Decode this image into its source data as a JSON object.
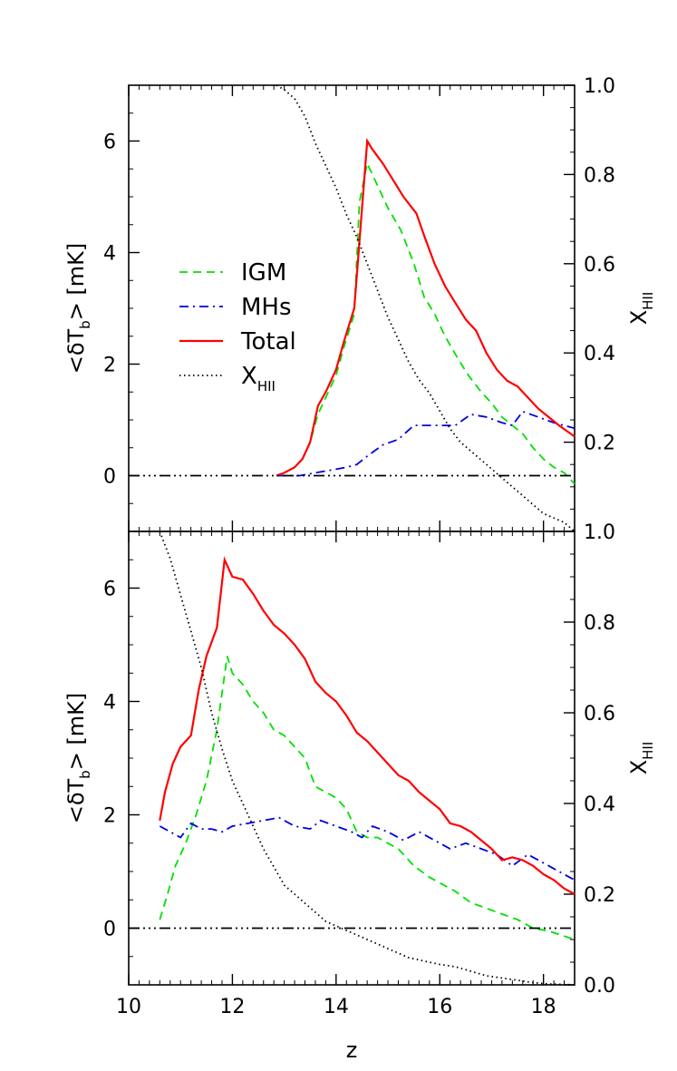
{
  "chart_data": [
    {
      "type": "line",
      "panel": "top",
      "ylabel": "<δT_b> [mK]",
      "ylabel_parts": {
        "open": "<δT",
        "sub": "b",
        "close": "> [mK]"
      },
      "y2label": "X_HII",
      "y2label_parts": {
        "main": "X",
        "sub": "HII"
      },
      "xlim": [
        10,
        18.6
      ],
      "ylim": [
        -1,
        7
      ],
      "y2lim": [
        0.0,
        1.0
      ],
      "yticks": [
        0,
        2,
        4,
        6
      ],
      "y2ticks": [
        0.2,
        0.4,
        0.6,
        0.8,
        1.0
      ],
      "legend": {
        "position": "center-left",
        "entries": [
          {
            "label": "IGM",
            "color": "#00e000",
            "dash": "dashed"
          },
          {
            "label": "MHs",
            "color": "#0000e0",
            "dash": "dashdot"
          },
          {
            "label": "Total",
            "color": "#ff0000",
            "dash": "solid"
          },
          {
            "label": "X",
            "label_sub": "HII",
            "color": "#000000",
            "dash": "dotted"
          }
        ]
      },
      "series": [
        {
          "name": "IGM",
          "color": "#00e000",
          "dash": "dashed",
          "axis": "left",
          "x": [
            12.85,
            13.0,
            13.2,
            13.35,
            13.5,
            13.65,
            13.8,
            14.0,
            14.15,
            14.35,
            14.45,
            14.6,
            14.8,
            15.0,
            15.25,
            15.5,
            15.7,
            15.9,
            16.1,
            16.35,
            16.55,
            16.8,
            17.0,
            17.2,
            17.4,
            17.6,
            17.8,
            18.0,
            18.2,
            18.4,
            18.6
          ],
          "y": [
            0.0,
            0.05,
            0.15,
            0.3,
            0.6,
            1.1,
            1.4,
            1.8,
            2.3,
            2.9,
            4.9,
            5.6,
            5.2,
            4.8,
            4.4,
            3.8,
            3.2,
            2.9,
            2.5,
            2.1,
            1.8,
            1.5,
            1.3,
            1.05,
            0.9,
            0.75,
            0.5,
            0.3,
            0.15,
            0.05,
            -0.15
          ]
        },
        {
          "name": "MHs",
          "color": "#0000e0",
          "dash": "dashdot",
          "axis": "left",
          "x": [
            12.85,
            13.3,
            13.6,
            13.9,
            14.2,
            14.4,
            14.6,
            14.9,
            15.2,
            15.5,
            15.8,
            16.0,
            16.3,
            16.6,
            16.9,
            17.2,
            17.4,
            17.6,
            17.9,
            18.2,
            18.6
          ],
          "y": [
            0.0,
            0.0,
            0.05,
            0.1,
            0.15,
            0.2,
            0.35,
            0.55,
            0.65,
            0.9,
            0.9,
            0.9,
            0.9,
            1.1,
            1.05,
            0.95,
            0.9,
            1.15,
            1.05,
            0.95,
            0.85
          ]
        },
        {
          "name": "Total",
          "color": "#ff0000",
          "dash": "solid",
          "axis": "left",
          "x": [
            12.85,
            13.0,
            13.2,
            13.35,
            13.5,
            13.65,
            13.8,
            14.0,
            14.15,
            14.35,
            14.6,
            14.7,
            14.9,
            15.1,
            15.3,
            15.55,
            15.7,
            15.9,
            16.1,
            16.3,
            16.5,
            16.7,
            16.9,
            17.1,
            17.3,
            17.5,
            17.7,
            17.9,
            18.1,
            18.3,
            18.6
          ],
          "y": [
            0.0,
            0.05,
            0.15,
            0.3,
            0.6,
            1.25,
            1.5,
            1.9,
            2.4,
            3.0,
            6.0,
            5.85,
            5.6,
            5.3,
            5.0,
            4.7,
            4.3,
            3.8,
            3.4,
            3.1,
            2.8,
            2.6,
            2.2,
            1.9,
            1.7,
            1.6,
            1.4,
            1.2,
            1.05,
            0.9,
            0.7
          ]
        },
        {
          "name": "X_HII",
          "color": "#000000",
          "dash": "dotted",
          "axis": "right",
          "x": [
            12.85,
            13.0,
            13.2,
            13.4,
            13.6,
            13.8,
            14.0,
            14.2,
            14.4,
            14.6,
            14.8,
            15.0,
            15.2,
            15.4,
            15.6,
            15.8,
            16.0,
            16.2,
            16.4,
            16.6,
            16.8,
            17.0,
            17.2,
            17.4,
            17.6,
            17.8,
            18.0,
            18.2,
            18.4,
            18.6
          ],
          "y": [
            1.0,
            0.99,
            0.97,
            0.93,
            0.87,
            0.82,
            0.77,
            0.71,
            0.66,
            0.6,
            0.54,
            0.48,
            0.43,
            0.38,
            0.34,
            0.31,
            0.27,
            0.23,
            0.2,
            0.18,
            0.16,
            0.14,
            0.12,
            0.1,
            0.08,
            0.06,
            0.04,
            0.03,
            0.02,
            0.0
          ]
        },
        {
          "name": "zero",
          "color": "#000000",
          "dash": "dashdotdotdot",
          "axis": "left",
          "x": [
            10,
            18.6
          ],
          "y": [
            0,
            0
          ]
        }
      ]
    },
    {
      "type": "line",
      "panel": "bottom",
      "ylabel": "<δT_b> [mK]",
      "ylabel_parts": {
        "open": "<δT",
        "sub": "b",
        "close": "> [mK]"
      },
      "y2label": "X_HII",
      "y2label_parts": {
        "main": "X",
        "sub": "HII"
      },
      "xlabel": "z",
      "xlim": [
        10,
        18.6
      ],
      "ylim": [
        -1,
        7
      ],
      "y2lim": [
        0.0,
        1.0
      ],
      "xticks": [
        10,
        12,
        14,
        16,
        18
      ],
      "yticks": [
        0,
        2,
        4,
        6
      ],
      "y2ticks": [
        0.0,
        0.2,
        0.4,
        0.6,
        0.8,
        1.0
      ],
      "series": [
        {
          "name": "IGM",
          "color": "#00e000",
          "dash": "dashed",
          "axis": "left",
          "x": [
            10.6,
            10.75,
            10.9,
            11.1,
            11.3,
            11.5,
            11.7,
            11.9,
            12.0,
            12.2,
            12.4,
            12.6,
            12.8,
            13.0,
            13.2,
            13.4,
            13.6,
            13.8,
            14.0,
            14.2,
            14.4,
            14.6,
            14.8,
            15.0,
            15.2,
            15.5,
            15.8,
            16.0,
            16.3,
            16.6,
            16.9,
            17.2,
            17.5,
            17.8,
            18.1,
            18.6
          ],
          "y": [
            0.15,
            0.6,
            1.1,
            1.5,
            2.0,
            2.6,
            3.5,
            4.8,
            4.5,
            4.3,
            4.0,
            3.8,
            3.5,
            3.4,
            3.2,
            3.0,
            2.5,
            2.4,
            2.3,
            2.1,
            1.7,
            1.6,
            1.6,
            1.5,
            1.4,
            1.1,
            0.9,
            0.8,
            0.65,
            0.45,
            0.35,
            0.25,
            0.15,
            0.0,
            -0.05,
            -0.2
          ]
        },
        {
          "name": "MHs",
          "color": "#0000e0",
          "dash": "dashdot",
          "axis": "left",
          "x": [
            10.6,
            10.8,
            11.0,
            11.2,
            11.4,
            11.6,
            11.8,
            12.0,
            12.3,
            12.6,
            12.9,
            13.2,
            13.5,
            13.7,
            14.0,
            14.3,
            14.5,
            14.7,
            15.0,
            15.3,
            15.6,
            15.9,
            16.2,
            16.5,
            16.8,
            17.1,
            17.4,
            17.7,
            18.0,
            18.3,
            18.6
          ],
          "y": [
            1.8,
            1.7,
            1.6,
            1.85,
            1.75,
            1.75,
            1.7,
            1.8,
            1.85,
            1.9,
            1.95,
            1.8,
            1.75,
            1.9,
            1.8,
            1.7,
            1.6,
            1.8,
            1.7,
            1.55,
            1.7,
            1.55,
            1.4,
            1.5,
            1.4,
            1.3,
            1.1,
            1.3,
            1.15,
            1.0,
            0.85
          ]
        },
        {
          "name": "Total",
          "color": "#ff0000",
          "dash": "solid",
          "axis": "left",
          "x": [
            10.6,
            10.7,
            10.85,
            11.0,
            11.2,
            11.35,
            11.5,
            11.7,
            11.85,
            12.0,
            12.2,
            12.4,
            12.6,
            12.8,
            13.0,
            13.2,
            13.4,
            13.6,
            13.8,
            14.0,
            14.2,
            14.4,
            14.6,
            14.8,
            15.0,
            15.2,
            15.4,
            15.6,
            15.8,
            16.0,
            16.2,
            16.4,
            16.6,
            16.8,
            17.0,
            17.2,
            17.4,
            17.6,
            17.8,
            18.0,
            18.2,
            18.4,
            18.6
          ],
          "y": [
            1.9,
            2.4,
            2.9,
            3.2,
            3.4,
            4.2,
            4.8,
            5.3,
            6.5,
            6.2,
            6.15,
            5.9,
            5.6,
            5.35,
            5.2,
            5.0,
            4.75,
            4.35,
            4.15,
            4.0,
            3.75,
            3.45,
            3.3,
            3.1,
            2.9,
            2.7,
            2.6,
            2.4,
            2.25,
            2.1,
            1.85,
            1.8,
            1.7,
            1.55,
            1.4,
            1.2,
            1.25,
            1.2,
            1.1,
            0.95,
            0.85,
            0.7,
            0.6
          ]
        },
        {
          "name": "X_HII",
          "color": "#000000",
          "dash": "dotted",
          "axis": "right",
          "x": [
            10.6,
            10.8,
            11.0,
            11.2,
            11.4,
            11.6,
            11.8,
            12.0,
            12.2,
            12.4,
            12.6,
            12.8,
            13.0,
            13.2,
            13.4,
            13.6,
            13.8,
            14.0,
            14.2,
            14.4,
            14.6,
            14.8,
            15.0,
            15.2,
            15.4,
            15.6,
            15.8,
            16.0,
            16.3,
            16.6,
            16.9,
            17.2,
            17.5,
            17.8,
            18.1,
            18.6
          ],
          "y": [
            1.0,
            0.94,
            0.86,
            0.78,
            0.7,
            0.6,
            0.52,
            0.45,
            0.4,
            0.35,
            0.3,
            0.26,
            0.22,
            0.2,
            0.18,
            0.16,
            0.14,
            0.13,
            0.12,
            0.11,
            0.1,
            0.09,
            0.08,
            0.07,
            0.06,
            0.055,
            0.05,
            0.045,
            0.04,
            0.03,
            0.02,
            0.015,
            0.01,
            0.005,
            0.002,
            0.0
          ]
        },
        {
          "name": "zero",
          "color": "#000000",
          "dash": "dashdotdotdot",
          "axis": "left",
          "x": [
            10,
            18.6
          ],
          "y": [
            0,
            0
          ]
        }
      ]
    }
  ]
}
